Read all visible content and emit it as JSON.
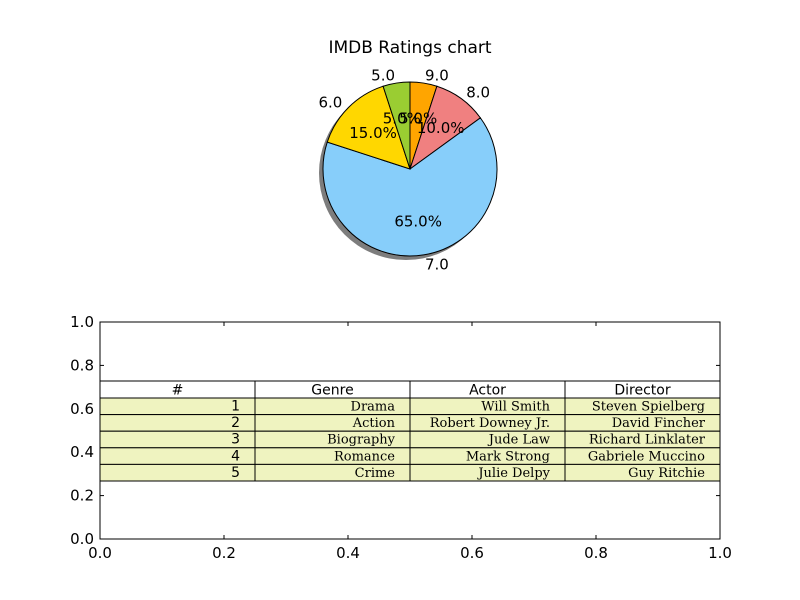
{
  "chart_data": [
    {
      "type": "pie",
      "title": "IMDB Ratings chart",
      "labels": [
        "9.0",
        "8.0",
        "7.0",
        "6.0",
        "5.0"
      ],
      "values": [
        5,
        10,
        65,
        15,
        5
      ],
      "pct_labels": [
        "5.0%",
        "10.0%",
        "65.0%",
        "15.0%",
        "5.0%"
      ],
      "colors": [
        "#ffa500",
        "#f08080",
        "#87cefa",
        "#ffd700",
        "#9acd32"
      ],
      "start_angle_deg": 90,
      "direction": "clockwise",
      "shadow": true
    },
    {
      "type": "table",
      "xlim": [
        0.0,
        1.0
      ],
      "ylim": [
        0.0,
        1.0
      ],
      "x_ticks": [
        "0.0",
        "0.2",
        "0.4",
        "0.6",
        "0.8",
        "1.0"
      ],
      "y_ticks": [
        "0.0",
        "0.2",
        "0.4",
        "0.6",
        "0.8",
        "1.0"
      ],
      "columns": [
        "#",
        "Genre",
        "Actor",
        "Director"
      ],
      "rows": [
        [
          "1",
          "Drama",
          "Will Smith",
          "Steven Spielberg"
        ],
        [
          "2",
          "Action",
          "Robert Downey Jr.",
          "David Fincher"
        ],
        [
          "3",
          "Biography",
          "Jude Law",
          "Richard Linklater"
        ],
        [
          "4",
          "Romance",
          "Mark Strong",
          "Gabriele Muccino"
        ],
        [
          "5",
          "Crime",
          "Julie Delpy",
          "Guy Ritchie"
        ]
      ],
      "cell_color": "#eff3c0",
      "header_color": "#ffffff"
    }
  ]
}
